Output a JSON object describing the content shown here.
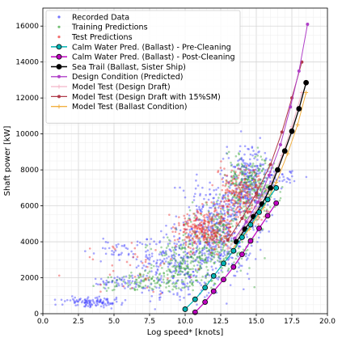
{
  "chart_data": {
    "type": "scatter",
    "xlabel": "Log speed* [knots]",
    "ylabel": "Shaft power [kW]",
    "xlim": [
      0,
      20
    ],
    "ylim": [
      0,
      17000
    ],
    "xticks": [
      "0.0",
      "2.5",
      "5.0",
      "7.5",
      "10.0",
      "12.5",
      "15.0",
      "17.5",
      "20.0"
    ],
    "yticks": [
      "0",
      "2000",
      "4000",
      "6000",
      "8000",
      "10000",
      "12000",
      "14000",
      "16000"
    ],
    "grid": true,
    "legend_position": "upper-left",
    "colors": {
      "recorded": "#3b3bff",
      "training": "#3aa63a",
      "test": "#ee3030",
      "pre_cleaning": "#00b3b3",
      "post_cleaning": "#c000c0",
      "sea_trail": "#000000",
      "design_condition": "#b040c8",
      "model_design_draft": "#f4b6c8",
      "model_15sm": "#b03a4a",
      "model_ballast": "#f2b041"
    },
    "scatter_clusters": [
      {
        "series": "Recorded Data",
        "cx": 3.5,
        "cy": 650,
        "sx": 1.0,
        "sy": 140,
        "n": 110
      },
      {
        "series": "Recorded Data",
        "cx": 5.5,
        "cy": 1750,
        "sx": 1.0,
        "sy": 150,
        "n": 50
      },
      {
        "series": "Recorded Data",
        "cx": 6.0,
        "cy": 3400,
        "sx": 1.2,
        "sy": 300,
        "n": 45
      },
      {
        "series": "Recorded Data",
        "cx": 9.5,
        "cy": 2600,
        "sx": 1.6,
        "sy": 1000,
        "n": 280
      },
      {
        "series": "Recorded Data",
        "cx": 12.5,
        "cy": 4800,
        "sx": 1.3,
        "sy": 1300,
        "n": 420
      },
      {
        "series": "Recorded Data",
        "cx": 14.5,
        "cy": 7300,
        "sx": 0.8,
        "sy": 1000,
        "n": 280
      },
      {
        "series": "Recorded Data",
        "cx": 16.6,
        "cy": 7600,
        "sx": 0.7,
        "sy": 300,
        "n": 40
      },
      {
        "series": "Training Predictions",
        "cx": 7.5,
        "cy": 1800,
        "sx": 1.8,
        "sy": 280,
        "n": 110
      },
      {
        "series": "Training Predictions",
        "cx": 10.0,
        "cy": 2800,
        "sx": 1.3,
        "sy": 700,
        "n": 180
      },
      {
        "series": "Training Predictions",
        "cx": 12.3,
        "cy": 4200,
        "sx": 1.1,
        "sy": 900,
        "n": 260
      },
      {
        "series": "Training Predictions",
        "cx": 14.6,
        "cy": 7200,
        "sx": 0.9,
        "sy": 900,
        "n": 280
      },
      {
        "series": "Test Predictions",
        "cx": 11.5,
        "cy": 4600,
        "sx": 1.0,
        "sy": 550,
        "n": 280
      },
      {
        "series": "Test Predictions",
        "cx": 13.9,
        "cy": 6600,
        "sx": 0.9,
        "sy": 800,
        "n": 240
      },
      {
        "series": "Test Predictions",
        "cx": 6.0,
        "cy": 2800,
        "sx": 1.8,
        "sy": 700,
        "n": 40
      }
    ],
    "series": [
      {
        "name": "Recorded Data",
        "kind": "scatter"
      },
      {
        "name": "Training Predictions",
        "kind": "scatter"
      },
      {
        "name": "Test Predictions",
        "kind": "scatter"
      },
      {
        "name": "Calm Water Pred. (Ballast) - Pre-Cleaning",
        "kind": "line",
        "x": [
          10.0,
          10.7,
          11.4,
          12.0,
          12.7,
          13.4,
          14.0,
          14.6,
          15.2,
          15.8,
          16.4
        ],
        "y": [
          250,
          800,
          1450,
          2100,
          2800,
          3500,
          4250,
          4950,
          5650,
          6350,
          7000
        ]
      },
      {
        "name": "Calm Water Pred. (Ballast) - Post-Cleaning",
        "kind": "line",
        "x": [
          10.7,
          11.4,
          12.0,
          12.7,
          13.4,
          14.0,
          14.6,
          15.2,
          15.8,
          16.4
        ],
        "y": [
          80,
          650,
          1250,
          1900,
          2600,
          3300,
          4050,
          4750,
          5450,
          6150
        ]
      },
      {
        "name": "Sea Trail (Ballast, Sister Ship)",
        "kind": "line",
        "x": [
          13.6,
          14.2,
          14.8,
          15.4,
          16.0,
          16.5,
          17.0,
          17.5,
          18.0,
          18.5
        ],
        "y": [
          4000,
          4700,
          5400,
          6100,
          7000,
          8000,
          9050,
          10150,
          11400,
          12850
        ]
      },
      {
        "name": "Design Condition (Predicted)",
        "kind": "line",
        "x": [
          13.5,
          14.3,
          15.1,
          15.9,
          16.7,
          17.4,
          18.0,
          18.6
        ],
        "y": [
          4200,
          5100,
          6200,
          7700,
          9400,
          11500,
          13500,
          16100
        ]
      },
      {
        "name": "Model Test (Design Draft)",
        "kind": "line",
        "x": [
          13.0,
          14.0,
          15.0,
          16.0,
          16.8,
          17.5,
          18.2
        ],
        "y": [
          3600,
          4600,
          5800,
          7200,
          8800,
          10400,
          12300
        ]
      },
      {
        "name": "Model Test (Design Draft with 15%SM)",
        "kind": "line",
        "x": [
          13.0,
          14.0,
          15.0,
          16.0,
          16.8,
          17.5,
          18.2
        ],
        "y": [
          4100,
          5300,
          6700,
          8300,
          10100,
          12000,
          14000
        ]
      },
      {
        "name": "Model Test (Ballast Condition)",
        "kind": "line",
        "x": [
          13.5,
          14.5,
          15.5,
          16.4,
          17.2,
          17.9,
          18.5
        ],
        "y": [
          3700,
          4700,
          5900,
          7300,
          8900,
          10500,
          12300
        ]
      }
    ]
  }
}
